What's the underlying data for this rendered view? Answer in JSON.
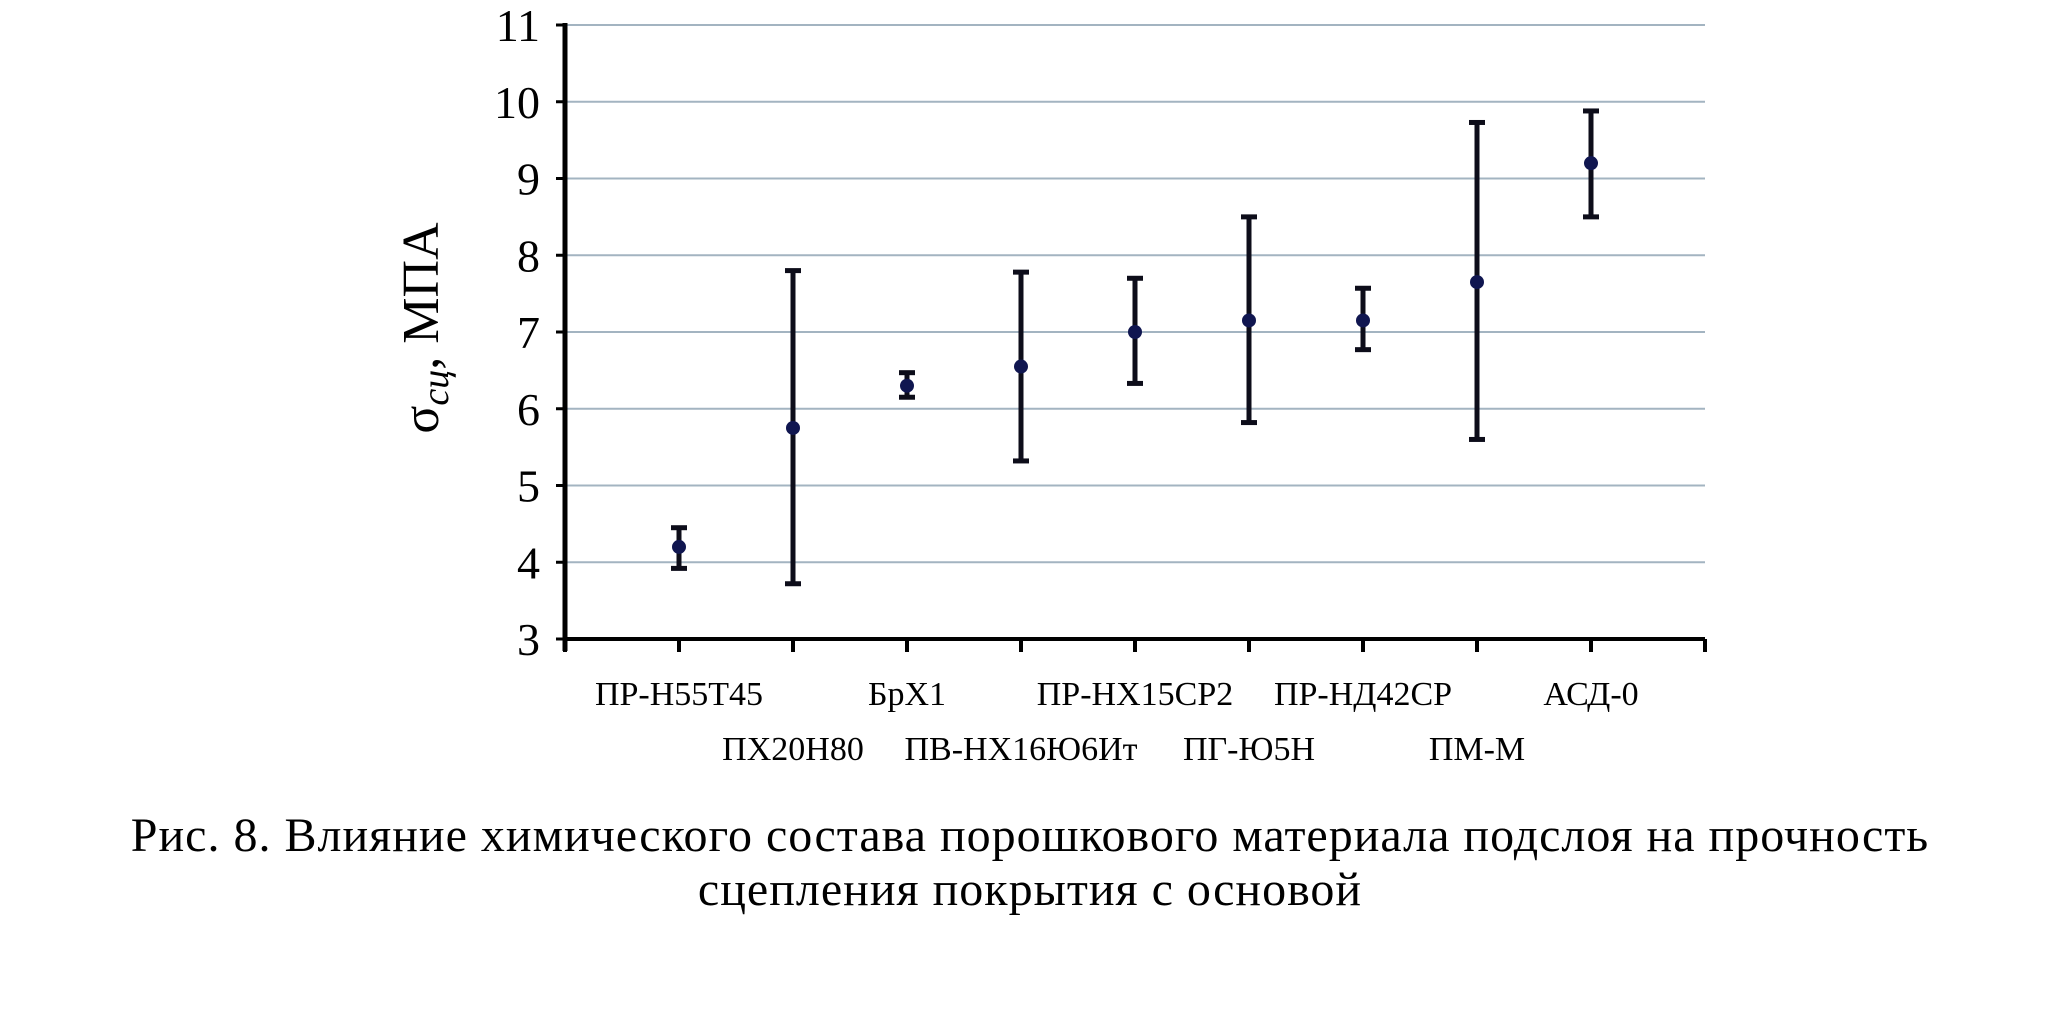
{
  "chart_data": {
    "type": "scatter",
    "title": "",
    "xlabel": "",
    "ylabel": "σсц, МПА",
    "ylabel_parts": {
      "symbol": "σ",
      "subscript": "сц",
      "unit": ", МПА"
    },
    "ylim": [
      3,
      11
    ],
    "yticks": [
      "3",
      "4",
      "5",
      "6",
      "7",
      "8",
      "9",
      "10",
      "11"
    ],
    "grid": true,
    "legend": "none",
    "categories": [
      "ПР-Н55Т45",
      "ПХ20Н80",
      "БрХ1",
      "ПВ-НХ16Ю6Ит",
      "ПР-НХ15СР2",
      "ПГ-Ю5Н",
      "ПР-НД42СР",
      "ПМ-М",
      "АСД-0"
    ],
    "series": [
      {
        "values": [
          4.2,
          5.75,
          6.3,
          6.55,
          7.0,
          7.15,
          7.15,
          7.65,
          9.2
        ],
        "error_low": [
          3.92,
          3.72,
          6.15,
          5.32,
          6.33,
          5.82,
          6.77,
          5.6,
          8.5
        ],
        "error_high": [
          4.45,
          7.8,
          6.47,
          7.78,
          7.7,
          8.5,
          7.57,
          9.73,
          9.88
        ]
      }
    ],
    "colors": {
      "marker": "#101650",
      "error_bar": "#0d0d1a",
      "grid": "#a3b4c1",
      "axis": "#000000"
    }
  },
  "caption": {
    "line1": "Рис. 8. Влияние химического состава порошкового материала подслоя на прочность",
    "line2": "сцепления покрытия с основой"
  }
}
